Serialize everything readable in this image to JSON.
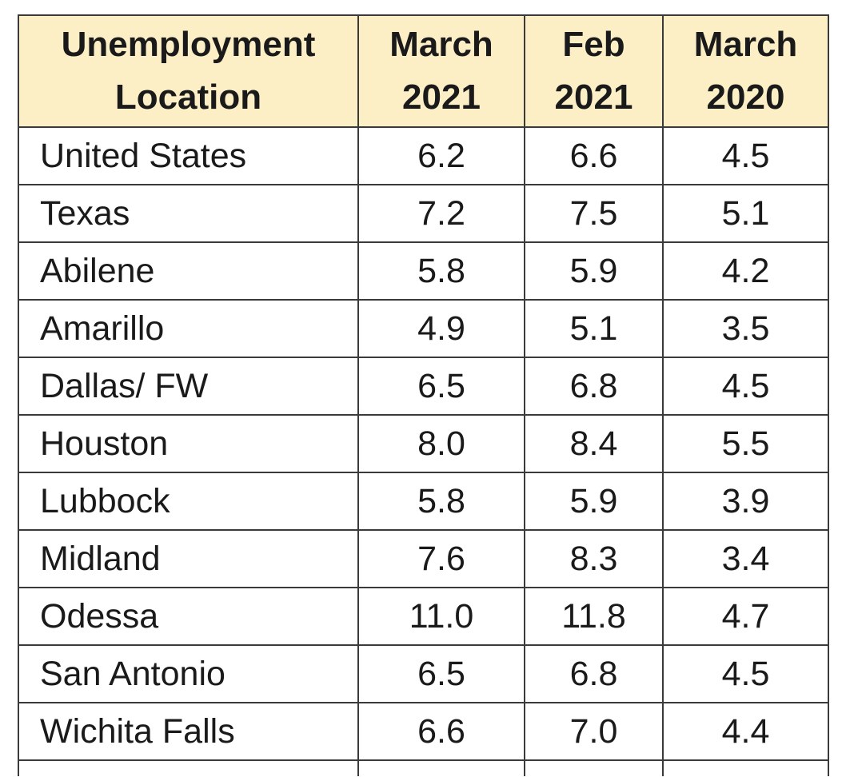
{
  "table": {
    "header": [
      [
        "Unemployment",
        "Location"
      ],
      [
        "March",
        "2021"
      ],
      [
        "Feb",
        "2021"
      ],
      [
        "March",
        "2020"
      ]
    ],
    "rows": [
      [
        "United States",
        "6.2",
        "6.6",
        "4.5"
      ],
      [
        "Texas",
        "7.2",
        "7.5",
        "5.1"
      ],
      [
        "Abilene",
        "5.8",
        "5.9",
        "4.2"
      ],
      [
        "Amarillo",
        "4.9",
        "5.1",
        "3.5"
      ],
      [
        "Dallas/ FW",
        "6.5",
        "6.8",
        "4.5"
      ],
      [
        "Houston",
        "8.0",
        "8.4",
        "5.5"
      ],
      [
        "Lubbock",
        "5.8",
        "5.9",
        "3.9"
      ],
      [
        "Midland",
        "7.6",
        "8.3",
        "3.4"
      ],
      [
        "Odessa",
        "11.0",
        "11.8",
        "4.7"
      ],
      [
        "San Antonio",
        "6.5",
        "6.8",
        "4.5"
      ],
      [
        "Wichita Falls",
        "6.6",
        "7.0",
        "4.4"
      ]
    ]
  }
}
